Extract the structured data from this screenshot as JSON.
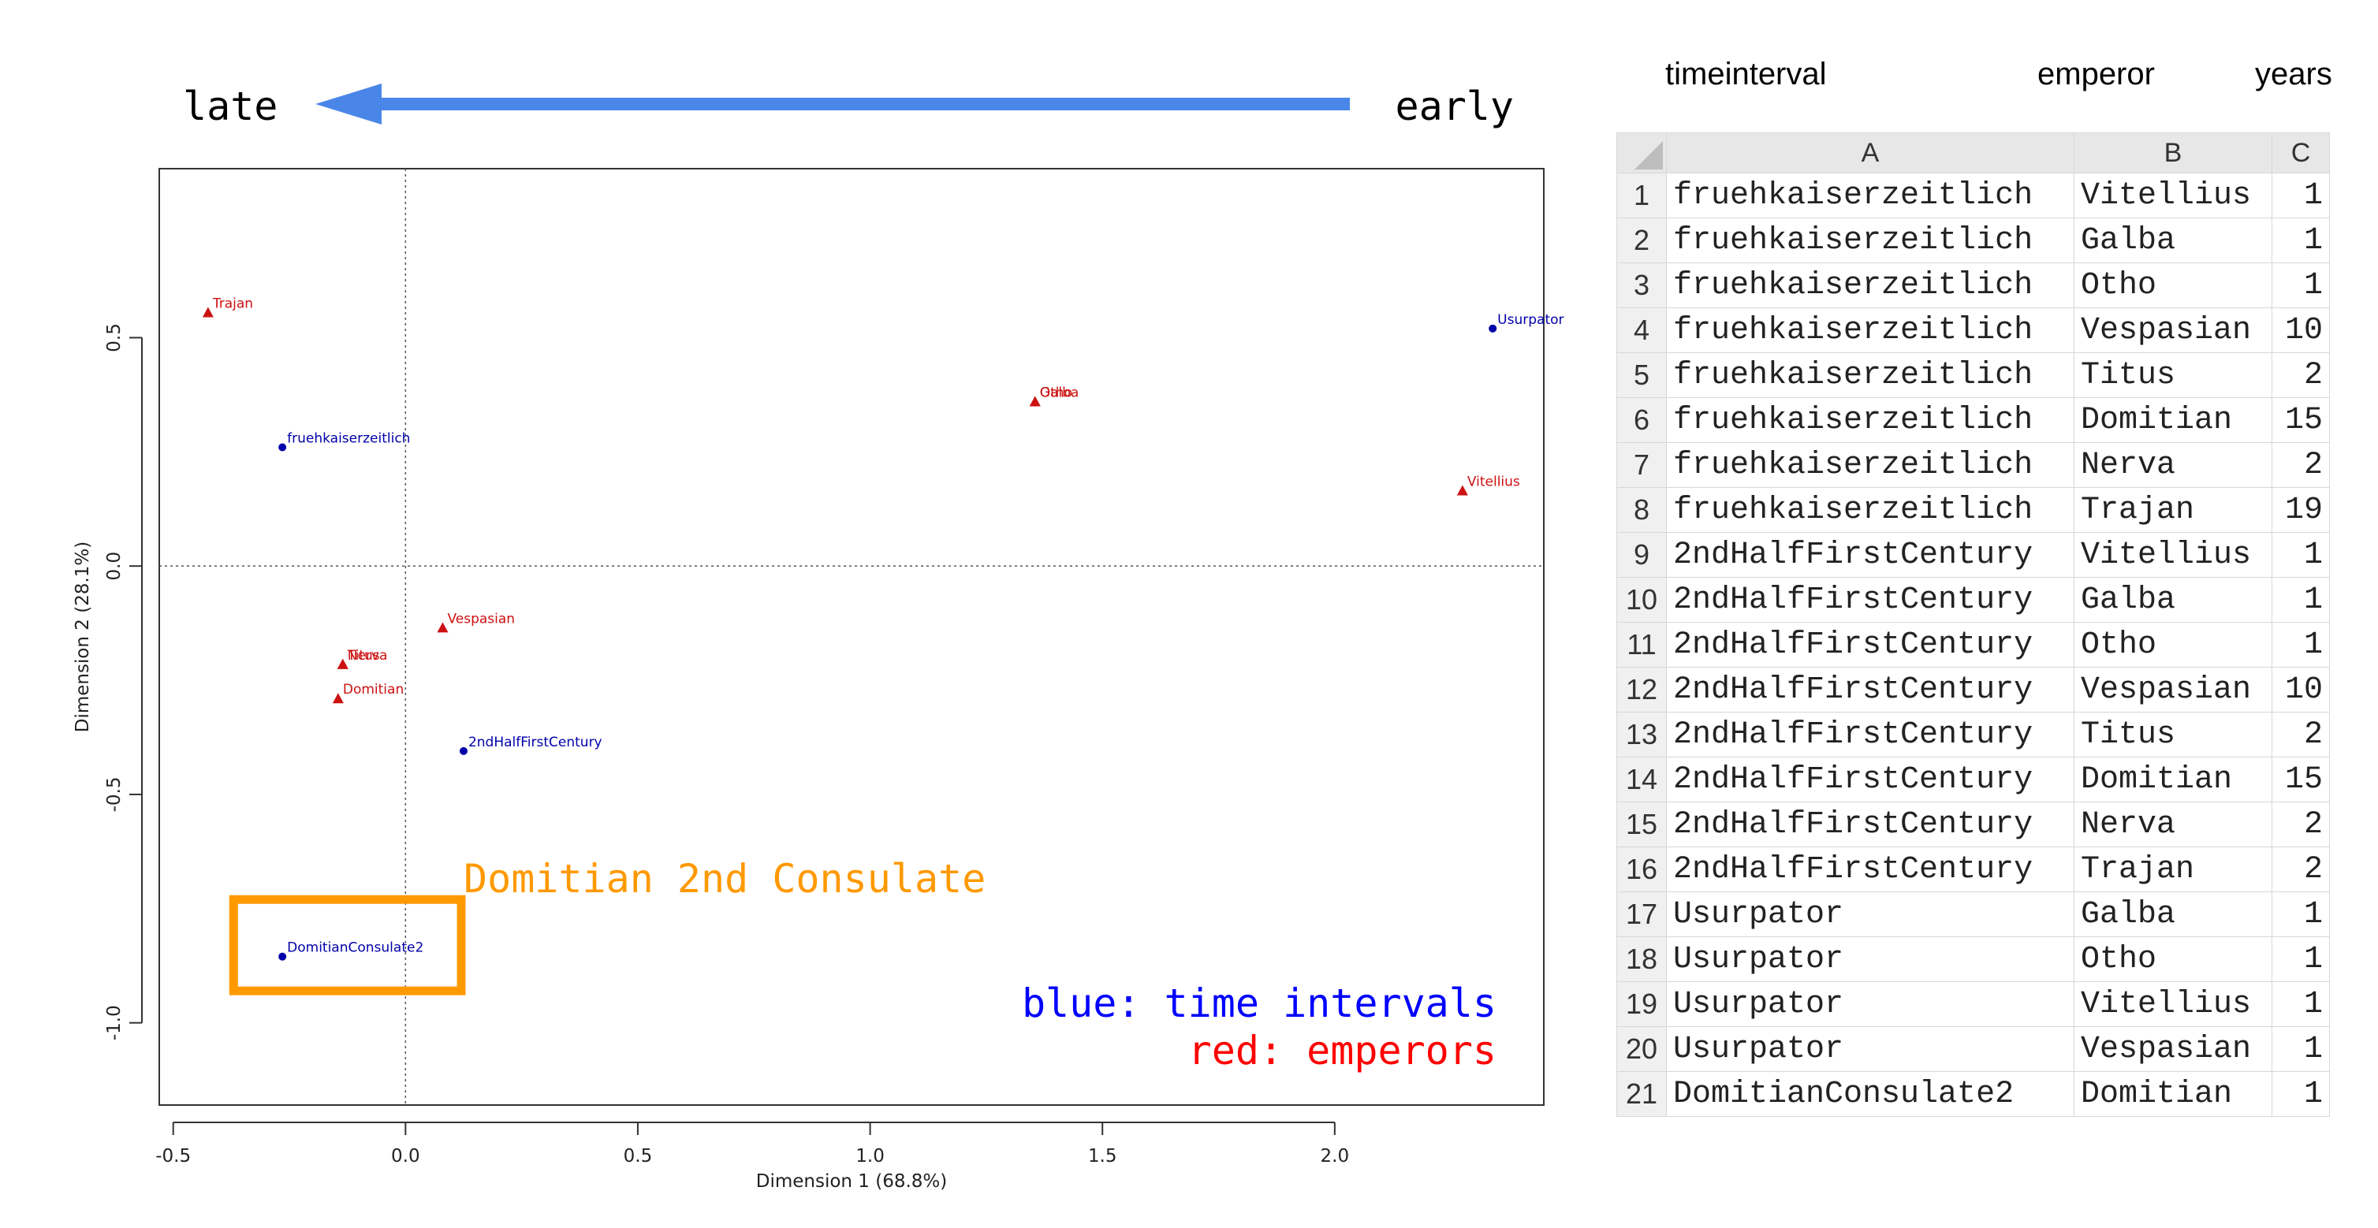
{
  "header": {
    "late_label": "late",
    "early_label": "early",
    "arrow_color": "#4a86e8"
  },
  "chart_data": {
    "type": "scatter",
    "title": "",
    "xlabel": "Dimension 1 (68.8%)",
    "ylabel": "Dimension 2 (28.1%)",
    "xlim": [
      -0.53,
      2.45
    ],
    "ylim": [
      -1.18,
      0.87
    ],
    "xticks": [
      -0.5,
      0.0,
      0.5,
      1.0,
      1.5,
      2.0
    ],
    "xtick_labels": [
      "-0.5",
      "0.0",
      "0.5",
      "1.0",
      "1.5",
      "2.0"
    ],
    "yticks": [
      -1.0,
      -0.5,
      0.0,
      0.5
    ],
    "ytick_labels": [
      "-1.0",
      "-0.5",
      "0.0",
      "0.5"
    ],
    "grid": false,
    "reference_lines": {
      "x": 0,
      "y": 0
    },
    "series": [
      {
        "color": "#0000aa",
        "marker": "circle",
        "points": [
          {
            "label": "fruehkaiserzeitlich",
            "x": -0.265,
            "y": 0.26
          },
          {
            "label": "Usurpator",
            "x": 2.34,
            "y": 0.52
          },
          {
            "label": "2ndHalfFirstCentury",
            "x": 0.125,
            "y": -0.405
          },
          {
            "label": "DomitianConsulate2",
            "x": -0.265,
            "y": -0.855
          }
        ]
      },
      {
        "color": "#cc1111",
        "marker": "triangle",
        "points": [
          {
            "label": "Trajan",
            "x": -0.425,
            "y": 0.555
          },
          {
            "label": "Otho",
            "x": 1.355,
            "y": 0.36
          },
          {
            "label": "Galba",
            "x": 1.355,
            "y": 0.36
          },
          {
            "label": "Vitellius",
            "x": 2.275,
            "y": 0.165
          },
          {
            "label": "Vespasian",
            "x": 0.08,
            "y": -0.135
          },
          {
            "label": "Titus",
            "x": -0.135,
            "y": -0.215
          },
          {
            "label": "Nerva",
            "x": -0.135,
            "y": -0.215
          },
          {
            "label": "Domitian",
            "x": -0.145,
            "y": -0.29
          }
        ]
      }
    ],
    "annotations": [
      {
        "text": "Domitian 2nd Consulate",
        "color": "#ff9900"
      },
      {
        "text": "blue: time intervals",
        "color": "#0000ff"
      },
      {
        "text": "red: emperors",
        "color": "#ff0000"
      }
    ],
    "highlight_box": {
      "x_range": [
        -0.37,
        0.12
      ],
      "y_range": [
        -0.93,
        -0.73
      ],
      "color": "#ff9900"
    }
  },
  "table": {
    "captions": [
      "timeinterval",
      "emperor",
      "years"
    ],
    "col_headers": [
      "A",
      "B",
      "C"
    ],
    "rows": [
      [
        "1",
        "fruehkaiserzeitlich",
        "Vitellius",
        "1"
      ],
      [
        "2",
        "fruehkaiserzeitlich",
        "Galba",
        "1"
      ],
      [
        "3",
        "fruehkaiserzeitlich",
        "Otho",
        "1"
      ],
      [
        "4",
        "fruehkaiserzeitlich",
        "Vespasian",
        "10"
      ],
      [
        "5",
        "fruehkaiserzeitlich",
        "Titus",
        "2"
      ],
      [
        "6",
        "fruehkaiserzeitlich",
        "Domitian",
        "15"
      ],
      [
        "7",
        "fruehkaiserzeitlich",
        "Nerva",
        "2"
      ],
      [
        "8",
        "fruehkaiserzeitlich",
        "Trajan",
        "19"
      ],
      [
        "9",
        "2ndHalfFirstCentury",
        "Vitellius",
        "1"
      ],
      [
        "10",
        "2ndHalfFirstCentury",
        "Galba",
        "1"
      ],
      [
        "11",
        "2ndHalfFirstCentury",
        "Otho",
        "1"
      ],
      [
        "12",
        "2ndHalfFirstCentury",
        "Vespasian",
        "10"
      ],
      [
        "13",
        "2ndHalfFirstCentury",
        "Titus",
        "2"
      ],
      [
        "14",
        "2ndHalfFirstCentury",
        "Domitian",
        "15"
      ],
      [
        "15",
        "2ndHalfFirstCentury",
        "Nerva",
        "2"
      ],
      [
        "16",
        "2ndHalfFirstCentury",
        "Trajan",
        "2"
      ],
      [
        "17",
        "Usurpator",
        "Galba",
        "1"
      ],
      [
        "18",
        "Usurpator",
        "Otho",
        "1"
      ],
      [
        "19",
        "Usurpator",
        "Vitellius",
        "1"
      ],
      [
        "20",
        "Usurpator",
        "Vespasian",
        "1"
      ],
      [
        "21",
        "DomitianConsulate2",
        "Domitian",
        "1"
      ]
    ]
  }
}
